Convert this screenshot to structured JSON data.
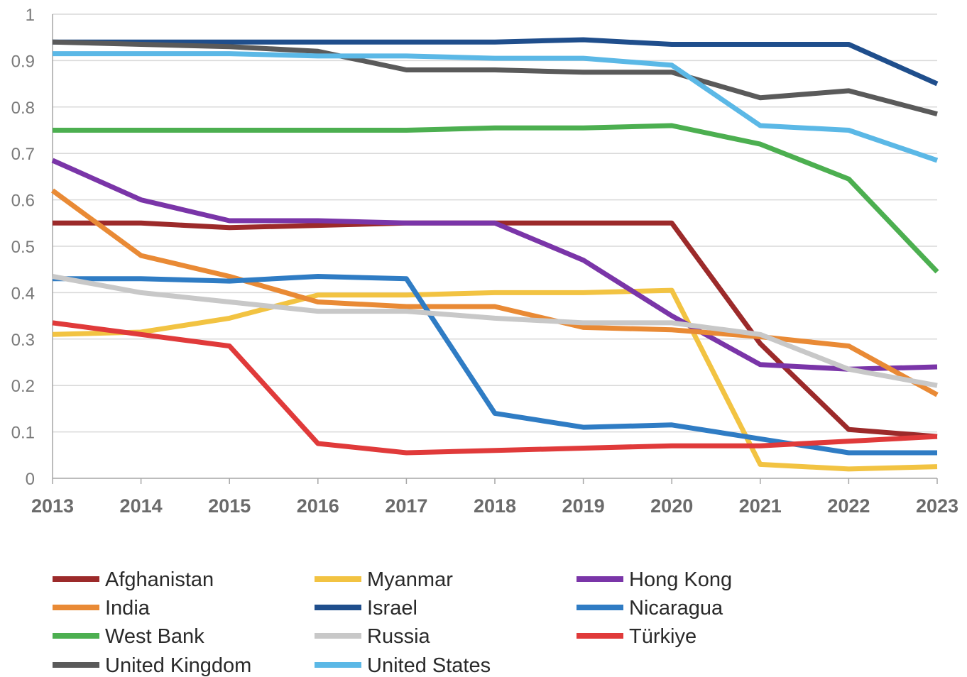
{
  "chart_data": {
    "type": "line",
    "title": "",
    "xlabel": "",
    "ylabel": "",
    "ylim": [
      0,
      1
    ],
    "grid": "horizontal",
    "legend_position": "bottom",
    "x": [
      "2013",
      "2014",
      "2015",
      "2016",
      "2017",
      "2018",
      "2019",
      "2020",
      "2021",
      "2022",
      "2023"
    ],
    "y_ticks": [
      "0",
      "0.1",
      "0.2",
      "0.3",
      "0.4",
      "0.5",
      "0.6",
      "0.7",
      "0.8",
      "0.9",
      "1"
    ],
    "series": [
      {
        "name": "Afghanistan",
        "color": "#9c2a2a",
        "values": [
          0.55,
          0.55,
          0.54,
          0.545,
          0.55,
          0.55,
          0.55,
          0.55,
          0.29,
          0.105,
          0.09
        ]
      },
      {
        "name": "Myanmar",
        "color": "#f2c342",
        "values": [
          0.31,
          0.315,
          0.345,
          0.395,
          0.395,
          0.4,
          0.4,
          0.405,
          0.03,
          0.02,
          0.025
        ]
      },
      {
        "name": "Hong Kong",
        "color": "#7a35a8",
        "values": [
          0.685,
          0.6,
          0.555,
          0.555,
          0.55,
          0.55,
          0.47,
          0.35,
          0.245,
          0.235,
          0.24
        ]
      },
      {
        "name": "India",
        "color": "#e98a35",
        "values": [
          0.62,
          0.48,
          0.435,
          0.38,
          0.37,
          0.37,
          0.325,
          0.32,
          0.305,
          0.285,
          0.18
        ]
      },
      {
        "name": "Israel",
        "color": "#1f4e8c",
        "values": [
          0.94,
          0.94,
          0.94,
          0.94,
          0.94,
          0.94,
          0.945,
          0.935,
          0.935,
          0.935,
          0.85
        ]
      },
      {
        "name": "Nicaragua",
        "color": "#2f7cc4",
        "values": [
          0.43,
          0.43,
          0.425,
          0.435,
          0.43,
          0.14,
          0.11,
          0.115,
          0.085,
          0.055,
          0.055
        ]
      },
      {
        "name": "West Bank",
        "color": "#4caf50",
        "values": [
          0.75,
          0.75,
          0.75,
          0.75,
          0.75,
          0.755,
          0.755,
          0.76,
          0.72,
          0.645,
          0.445
        ]
      },
      {
        "name": "Russia",
        "color": "#c8c8c8",
        "values": [
          0.435,
          0.4,
          0.38,
          0.36,
          0.36,
          0.345,
          0.335,
          0.335,
          0.31,
          0.235,
          0.2
        ]
      },
      {
        "name": "Türkiye",
        "color": "#e03a3a",
        "values": [
          0.335,
          0.31,
          0.285,
          0.075,
          0.055,
          0.06,
          0.065,
          0.07,
          0.07,
          0.08,
          0.09
        ]
      },
      {
        "name": "United Kingdom",
        "color": "#5a5a5a",
        "values": [
          0.94,
          0.935,
          0.93,
          0.92,
          0.88,
          0.88,
          0.875,
          0.875,
          0.82,
          0.835,
          0.785
        ]
      },
      {
        "name": "United States",
        "color": "#5bb8e6",
        "values": [
          0.915,
          0.915,
          0.915,
          0.91,
          0.91,
          0.905,
          0.905,
          0.89,
          0.76,
          0.75,
          0.685
        ]
      }
    ]
  }
}
